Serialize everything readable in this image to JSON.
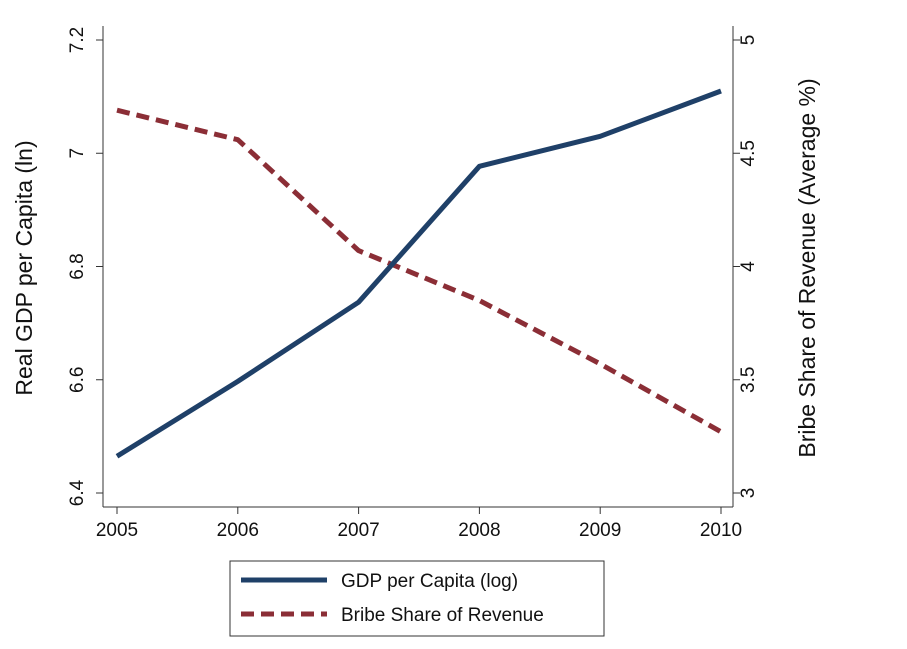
{
  "chart_data": {
    "type": "line",
    "x": [
      2005,
      2006,
      2007,
      2008,
      2009,
      2010
    ],
    "xticks": [
      "2005",
      "2006",
      "2007",
      "2008",
      "2009",
      "2010"
    ],
    "xlim": [
      2005,
      2010
    ],
    "series": [
      {
        "name": "GDP per Capita (log)",
        "axis": "left",
        "values": [
          6.465,
          6.597,
          6.737,
          6.977,
          7.03,
          7.11
        ],
        "color": "#1f4068",
        "style": "solid"
      },
      {
        "name": "Bribe Share of Revenue",
        "axis": "right",
        "values": [
          4.69,
          4.56,
          4.07,
          3.85,
          3.57,
          3.27
        ],
        "color": "#8b2e36",
        "style": "dashed"
      }
    ],
    "y_left": {
      "label": "Real GDP per Capita (ln)",
      "lim": [
        6.4,
        7.2
      ],
      "ticks": [
        "6.4",
        "6.6",
        "6.8",
        "7",
        "7.2"
      ]
    },
    "y_right": {
      "label": "Bribe Share of Revenue (Average %)",
      "lim": [
        3,
        5
      ],
      "ticks": [
        "3",
        "3.5",
        "4",
        "4.5",
        "5"
      ]
    },
    "grid": false,
    "legend_position": "bottom"
  }
}
